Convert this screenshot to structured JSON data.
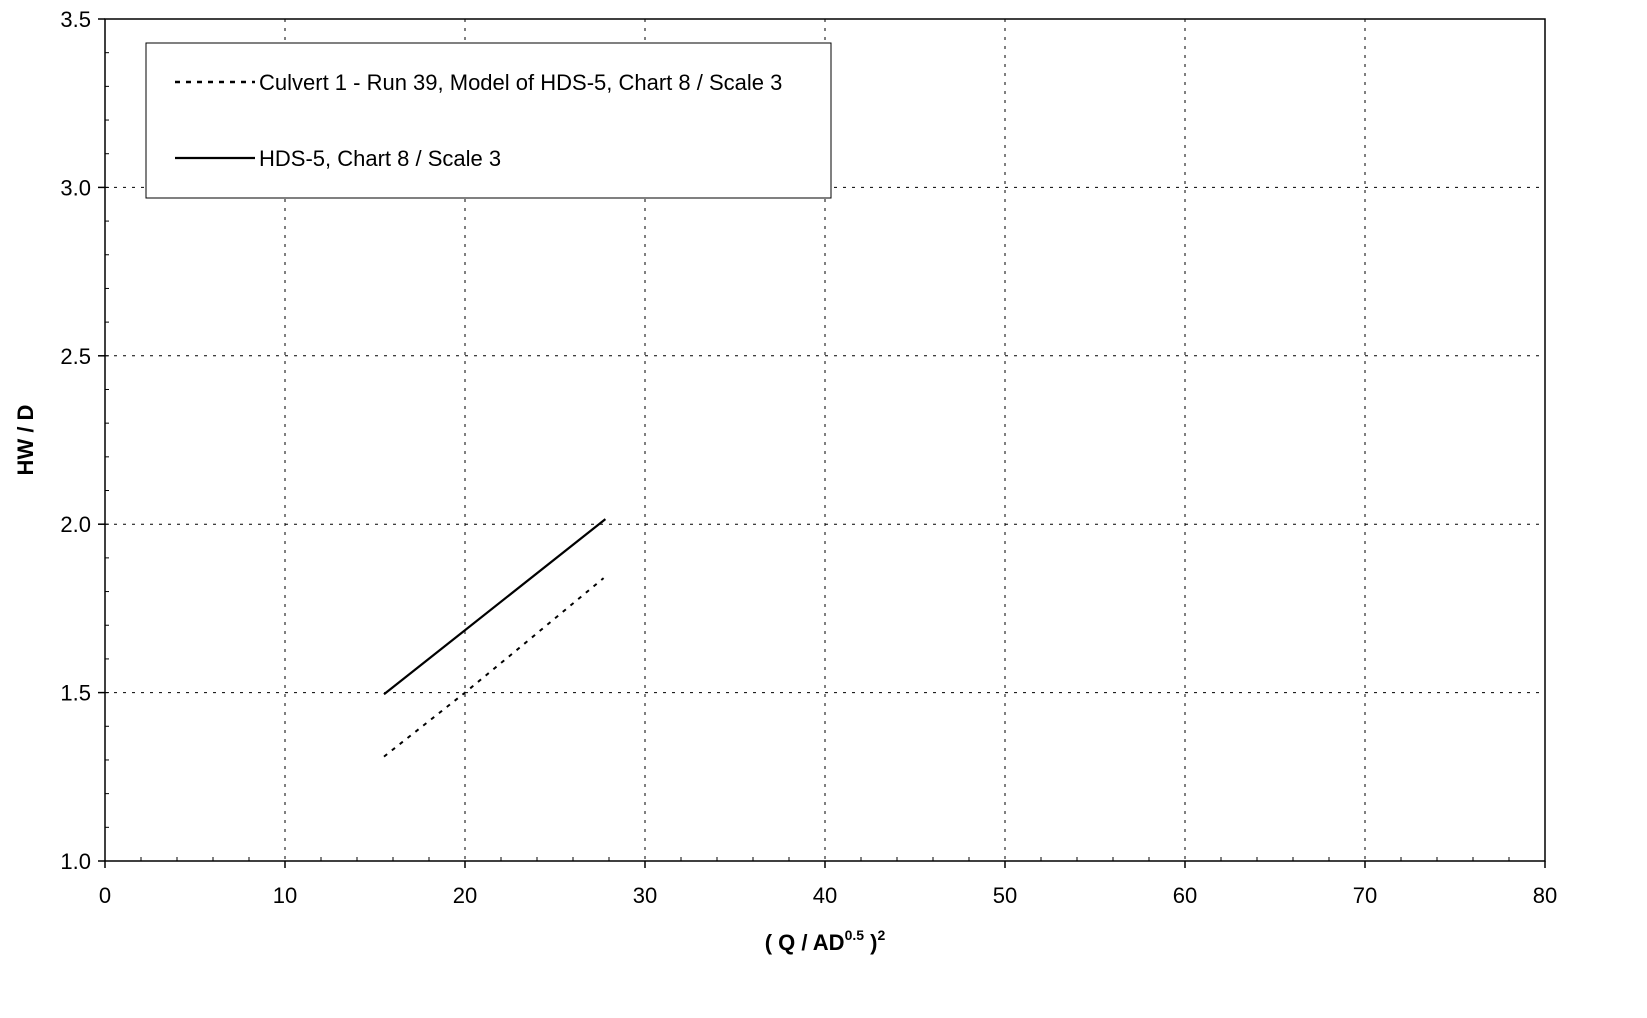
{
  "chart_data": {
    "type": "line",
    "title": "",
    "xlabel": {
      "prefix": "( Q / AD",
      "sup1": "0.5",
      "mid": " )",
      "sup2": "2"
    },
    "ylabel": "HW / D",
    "xlim": [
      0,
      80
    ],
    "ylim": [
      1.0,
      3.5
    ],
    "x_ticks": [
      0,
      10,
      20,
      30,
      40,
      50,
      60,
      70,
      80
    ],
    "x_tick_labels": [
      "0",
      "10",
      "20",
      "30",
      "40",
      "50",
      "60",
      "70",
      "80"
    ],
    "y_ticks": [
      1.0,
      1.5,
      2.0,
      2.5,
      3.0,
      3.5
    ],
    "y_tick_labels": [
      "1.0",
      "1.5",
      "2.0",
      "2.5",
      "3.0",
      "3.5"
    ],
    "x_minor_step": 2,
    "y_minor_step": 0.1,
    "grid": true,
    "legend_position": "top-left",
    "series": [
      {
        "name": "Culvert 1 - Run 39, Model of HDS-5, Chart 8 / Scale 3",
        "style": "dashed",
        "color": "#000000",
        "points": [
          [
            15.5,
            1.31
          ],
          [
            20.0,
            1.5
          ],
          [
            22.5,
            1.61
          ],
          [
            27.7,
            1.84
          ]
        ]
      },
      {
        "name": "HDS-5, Chart 8 / Scale 3",
        "style": "solid",
        "color": "#000000",
        "points": [
          [
            15.5,
            1.495
          ],
          [
            27.8,
            2.015
          ]
        ]
      }
    ]
  }
}
